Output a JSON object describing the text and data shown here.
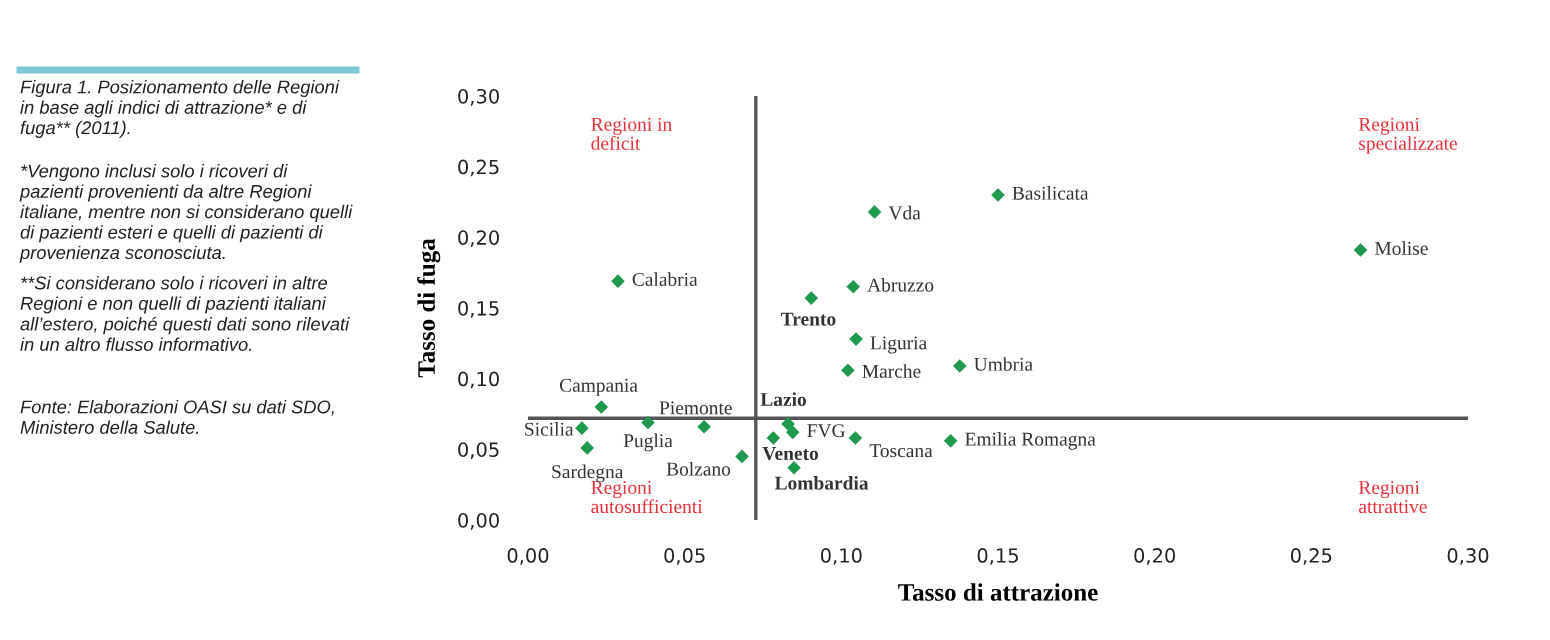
{
  "chart_data": {
    "type": "scatter",
    "title": "Figura 1. Posizionamento delle Regioni in base agli indici di attrazione* e di fuga** (2011).",
    "xlabel": "Tasso di attrazione",
    "ylabel": "Tasso di fuga",
    "x": [
      0.0287,
      0.1106,
      0.0904,
      0.1038,
      0.1047,
      0.1021,
      0.1378,
      0.15,
      0.2657,
      0.0234,
      0.0172,
      0.0189,
      0.0383,
      0.0562,
      0.0683,
      0.0783,
      0.083,
      0.0845,
      0.0849,
      0.1045,
      0.1349
    ],
    "values": [
      0.169,
      0.218,
      0.157,
      0.165,
      0.128,
      0.106,
      0.109,
      0.23,
      0.191,
      0.08,
      0.065,
      0.051,
      0.069,
      0.066,
      0.045,
      0.058,
      0.068,
      0.062,
      0.037,
      0.058,
      0.056
    ],
    "color": "#1f9a4c",
    "marker": "diamond",
    "xlim": [
      0,
      0.3
    ],
    "ylim": [
      0,
      0.3
    ],
    "xticks": [
      {
        "value": 0,
        "label": "0,00"
      },
      {
        "value": 0.05,
        "label": "0,05"
      },
      {
        "value": 0.1,
        "label": "0,10"
      },
      {
        "value": 0.15,
        "label": "0,15"
      },
      {
        "value": 0.2,
        "label": "0,20"
      },
      {
        "value": 0.25,
        "label": "0,25"
      },
      {
        "value": 0.3,
        "label": "0,30"
      }
    ],
    "yticks": [
      {
        "value": 0,
        "label": "0,00"
      },
      {
        "value": 0.05,
        "label": "0,05"
      },
      {
        "value": 0.1,
        "label": "0,10"
      },
      {
        "value": 0.15,
        "label": "0,15"
      },
      {
        "value": 0.2,
        "label": "0,20"
      },
      {
        "value": 0.25,
        "label": "0,25"
      },
      {
        "value": 0.3,
        "label": "0,30"
      }
    ],
    "ref_lines": [
      {
        "axis": "x",
        "value": 0.0727,
        "color": "#555555"
      },
      {
        "axis": "y",
        "value": 0.072,
        "color": "#555555"
      }
    ],
    "grid": false,
    "legend": false,
    "annotations": [
      {
        "text": "Calabria",
        "x": 0.0287,
        "y": 0.169
      },
      {
        "text": "Vda",
        "x": 0.1106,
        "y": 0.218
      },
      {
        "text": "Trento",
        "x": 0.0904,
        "y": 0.157
      },
      {
        "text": "Abruzzo",
        "x": 0.1038,
        "y": 0.165
      },
      {
        "text": "Liguria",
        "x": 0.1047,
        "y": 0.128
      },
      {
        "text": "Marche",
        "x": 0.1021,
        "y": 0.106
      },
      {
        "text": "Umbria",
        "x": 0.1378,
        "y": 0.109
      },
      {
        "text": "Basilicata",
        "x": 0.15,
        "y": 0.23
      },
      {
        "text": "Molise",
        "x": 0.2657,
        "y": 0.191
      },
      {
        "text": "Campania",
        "x": 0.0234,
        "y": 0.08
      },
      {
        "text": "Sicilia",
        "x": 0.0172,
        "y": 0.065
      },
      {
        "text": "Sardegna",
        "x": 0.0189,
        "y": 0.051
      },
      {
        "text": "Puglia",
        "x": 0.0383,
        "y": 0.069
      },
      {
        "text": "Piemonte",
        "x": 0.0562,
        "y": 0.066
      },
      {
        "text": "Bolzano",
        "x": 0.0683,
        "y": 0.045
      },
      {
        "text": "Veneto",
        "x": 0.0783,
        "y": 0.058
      },
      {
        "text": "Lazio",
        "x": 0.083,
        "y": 0.068
      },
      {
        "text": "FVG",
        "x": 0.0845,
        "y": 0.062
      },
      {
        "text": "Lombardia",
        "x": 0.0849,
        "y": 0.037
      },
      {
        "text": "Toscana",
        "x": 0.1045,
        "y": 0.058
      },
      {
        "text": "Emilia Romagna",
        "x": 0.1349,
        "y": 0.056
      },
      "Regioni in deficit",
      "Regioni specializzate",
      "Regioni autosufficienti",
      "Regioni attrattive",
      "*Vengono inclusi solo i ricoveri di pazienti provenienti da altre Regioni italiane, mentre non si considerano quelli di pazienti esteri e quelli di pazienti di provenienza sconosciuta.",
      "**Si considerano solo i ricoveri in altre Regioni e non quelli di pazienti italiani all’estero, poiché questi dati sono rilevati in un altro flusso informativo.",
      "Fonte: Elaborazioni OASI su dati SDO, Ministero della Salute."
    ]
  }
}
